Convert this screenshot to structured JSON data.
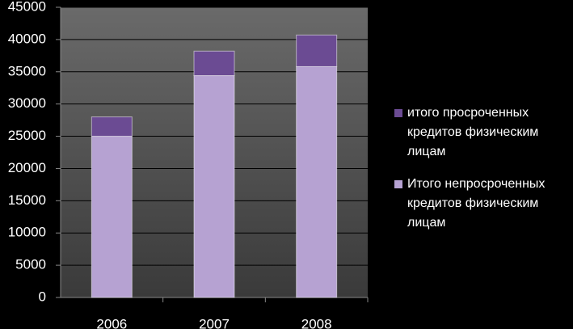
{
  "chart_data": {
    "type": "stacked_bar",
    "categories": [
      "2006",
      "2007",
      "2008"
    ],
    "series": [
      {
        "name": "Итого непросроченных кредитов физическим лицам",
        "color": "#b6a2d2",
        "values": [
          25000,
          34400,
          35800
        ]
      },
      {
        "name": "итого просроченных кредитов физическим лицам",
        "color": "#6b4b93",
        "values": [
          3000,
          3800,
          4900
        ]
      }
    ],
    "ylim": [
      0,
      45000
    ],
    "yticks": [
      0,
      5000,
      10000,
      15000,
      20000,
      25000,
      30000,
      35000,
      40000,
      45000
    ],
    "grid": true
  }
}
